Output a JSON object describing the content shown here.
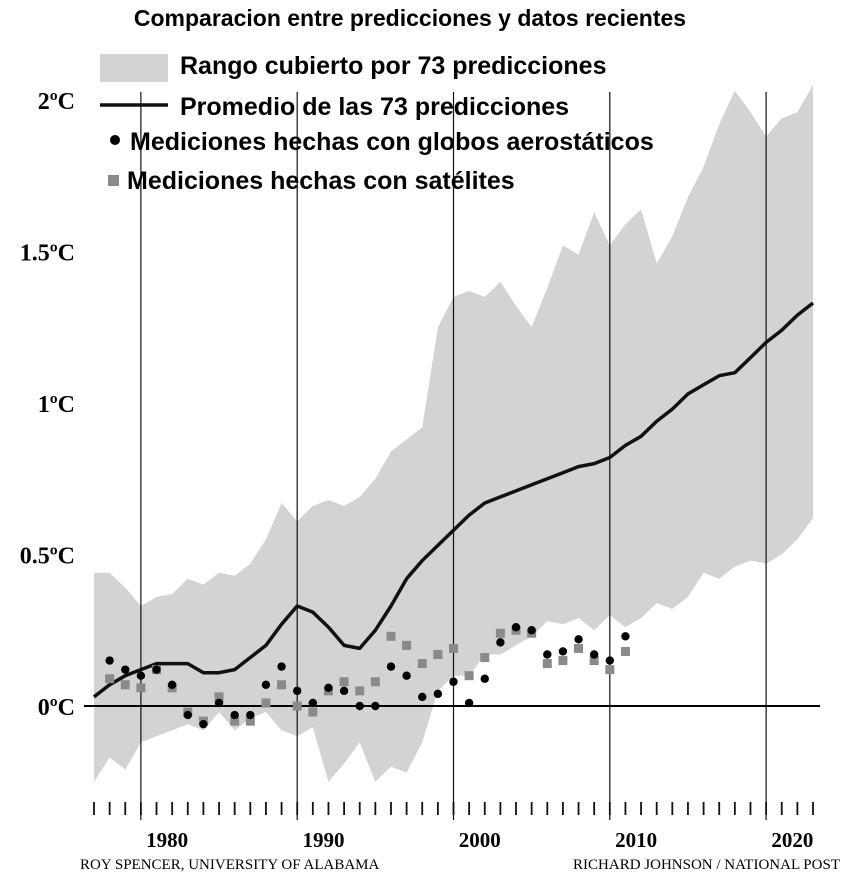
{
  "chart_data": {
    "type": "line",
    "title": "Comparacion entre predicciones y datos recientes",
    "xlabel": "",
    "ylabel": "",
    "xlim": [
      1975,
      2022
    ],
    "ylim": [
      -0.35,
      2.1
    ],
    "y_ticks": [
      0,
      0.5,
      1,
      1.5,
      2
    ],
    "y_tick_labels": [
      "0ºC",
      "0.5ºC",
      "1ºC",
      "1.5ºC",
      "2ºC"
    ],
    "x_ticks": [
      1980,
      1990,
      2000,
      2010,
      2020
    ],
    "x_tick_labels": [
      "1980",
      "1990",
      "2000",
      "2010",
      "2020"
    ],
    "vertical_lines": [
      1978,
      1988,
      1998,
      2008,
      2018
    ],
    "grid": false,
    "legend": {
      "position": "top-left",
      "entries": [
        {
          "label": "Rango cubierto por 73 predicciones",
          "marker": "band",
          "color": "#d3d3d3"
        },
        {
          "label": "Promedio de las 73 predicciones",
          "marker": "line",
          "color": "#111111"
        },
        {
          "label": "Mediciones hechas con globos aerostáticos",
          "marker": "circle",
          "color": "#000000"
        },
        {
          "label": "Mediciones hechas con satélites",
          "marker": "square",
          "color": "#8a8a8a"
        }
      ]
    },
    "range_band": {
      "name": "Rango cubierto por 73 predicciones",
      "upper": [
        [
          1975,
          0.44
        ],
        [
          1976,
          0.44
        ],
        [
          1977,
          0.39
        ],
        [
          1978,
          0.33
        ],
        [
          1979,
          0.36
        ],
        [
          1980,
          0.37
        ],
        [
          1981,
          0.42
        ],
        [
          1982,
          0.4
        ],
        [
          1983,
          0.44
        ],
        [
          1984,
          0.43
        ],
        [
          1985,
          0.47
        ],
        [
          1986,
          0.55
        ],
        [
          1987,
          0.67
        ],
        [
          1988,
          0.61
        ],
        [
          1989,
          0.66
        ],
        [
          1990,
          0.68
        ],
        [
          1991,
          0.66
        ],
        [
          1992,
          0.69
        ],
        [
          1993,
          0.75
        ],
        [
          1994,
          0.84
        ],
        [
          1995,
          0.88
        ],
        [
          1996,
          0.92
        ],
        [
          1997,
          1.25
        ],
        [
          1998,
          1.35
        ],
        [
          1999,
          1.37
        ],
        [
          2000,
          1.35
        ],
        [
          2001,
          1.4
        ],
        [
          2002,
          1.32
        ],
        [
          2003,
          1.25
        ],
        [
          2004,
          1.38
        ],
        [
          2005,
          1.52
        ],
        [
          2006,
          1.49
        ],
        [
          2007,
          1.63
        ],
        [
          2008,
          1.52
        ],
        [
          2009,
          1.59
        ],
        [
          2010,
          1.64
        ],
        [
          2011,
          1.46
        ],
        [
          2012,
          1.55
        ],
        [
          2013,
          1.68
        ],
        [
          2014,
          1.78
        ],
        [
          2015,
          1.92
        ],
        [
          2016,
          2.03
        ],
        [
          2017,
          1.96
        ],
        [
          2018,
          1.88
        ],
        [
          2019,
          1.94
        ],
        [
          2020,
          1.96
        ],
        [
          2021,
          2.05
        ]
      ],
      "lower": [
        [
          1975,
          -0.25
        ],
        [
          1976,
          -0.17
        ],
        [
          1977,
          -0.21
        ],
        [
          1978,
          -0.12
        ],
        [
          1979,
          -0.1
        ],
        [
          1980,
          -0.08
        ],
        [
          1981,
          -0.06
        ],
        [
          1982,
          -0.08
        ],
        [
          1983,
          -0.02
        ],
        [
          1984,
          -0.08
        ],
        [
          1985,
          -0.04
        ],
        [
          1986,
          -0.02
        ],
        [
          1987,
          -0.08
        ],
        [
          1988,
          -0.1
        ],
        [
          1989,
          -0.07
        ],
        [
          1990,
          -0.25
        ],
        [
          1991,
          -0.19
        ],
        [
          1992,
          -0.12
        ],
        [
          1993,
          -0.25
        ],
        [
          1994,
          -0.2
        ],
        [
          1995,
          -0.22
        ],
        [
          1996,
          -0.12
        ],
        [
          1997,
          0.05
        ],
        [
          1998,
          0.1
        ],
        [
          1999,
          0.1
        ],
        [
          2000,
          0.17
        ],
        [
          2001,
          0.17
        ],
        [
          2002,
          0.2
        ],
        [
          2003,
          0.23
        ],
        [
          2004,
          0.28
        ],
        [
          2005,
          0.27
        ],
        [
          2006,
          0.29
        ],
        [
          2007,
          0.25
        ],
        [
          2008,
          0.3
        ],
        [
          2009,
          0.26
        ],
        [
          2010,
          0.29
        ],
        [
          2011,
          0.34
        ],
        [
          2012,
          0.32
        ],
        [
          2013,
          0.36
        ],
        [
          2014,
          0.44
        ],
        [
          2015,
          0.42
        ],
        [
          2016,
          0.46
        ],
        [
          2017,
          0.48
        ],
        [
          2018,
          0.47
        ],
        [
          2019,
          0.5
        ],
        [
          2020,
          0.55
        ],
        [
          2021,
          0.62
        ]
      ]
    },
    "series": [
      {
        "name": "Promedio de las 73 predicciones",
        "type": "line",
        "color": "#111111",
        "points": [
          [
            1975,
            0.03
          ],
          [
            1976,
            0.07
          ],
          [
            1977,
            0.1
          ],
          [
            1978,
            0.12
          ],
          [
            1979,
            0.14
          ],
          [
            1980,
            0.14
          ],
          [
            1981,
            0.14
          ],
          [
            1982,
            0.11
          ],
          [
            1983,
            0.11
          ],
          [
            1984,
            0.12
          ],
          [
            1985,
            0.16
          ],
          [
            1986,
            0.2
          ],
          [
            1987,
            0.27
          ],
          [
            1988,
            0.33
          ],
          [
            1989,
            0.31
          ],
          [
            1990,
            0.26
          ],
          [
            1991,
            0.2
          ],
          [
            1992,
            0.19
          ],
          [
            1993,
            0.25
          ],
          [
            1994,
            0.33
          ],
          [
            1995,
            0.42
          ],
          [
            1996,
            0.48
          ],
          [
            1997,
            0.53
          ],
          [
            1998,
            0.58
          ],
          [
            1999,
            0.63
          ],
          [
            2000,
            0.67
          ],
          [
            2001,
            0.69
          ],
          [
            2002,
            0.71
          ],
          [
            2003,
            0.73
          ],
          [
            2004,
            0.75
          ],
          [
            2005,
            0.77
          ],
          [
            2006,
            0.79
          ],
          [
            2007,
            0.8
          ],
          [
            2008,
            0.82
          ],
          [
            2009,
            0.86
          ],
          [
            2010,
            0.89
          ],
          [
            2011,
            0.94
          ],
          [
            2012,
            0.98
          ],
          [
            2013,
            1.03
          ],
          [
            2014,
            1.06
          ],
          [
            2015,
            1.09
          ],
          [
            2016,
            1.1
          ],
          [
            2017,
            1.15
          ],
          [
            2018,
            1.2
          ],
          [
            2019,
            1.24
          ],
          [
            2020,
            1.29
          ],
          [
            2021,
            1.33
          ]
        ]
      },
      {
        "name": "Mediciones hechas con globos aerostáticos",
        "type": "scatter",
        "marker": "circle",
        "color": "#000000",
        "points": [
          [
            1976,
            0.15
          ],
          [
            1977,
            0.12
          ],
          [
            1978,
            0.1
          ],
          [
            1979,
            0.12
          ],
          [
            1980,
            0.07
          ],
          [
            1981,
            -0.03
          ],
          [
            1982,
            -0.06
          ],
          [
            1983,
            0.01
          ],
          [
            1984,
            -0.03
          ],
          [
            1985,
            -0.03
          ],
          [
            1986,
            0.07
          ],
          [
            1987,
            0.13
          ],
          [
            1988,
            0.05
          ],
          [
            1989,
            0.01
          ],
          [
            1990,
            0.06
          ],
          [
            1991,
            0.05
          ],
          [
            1992,
            0.0
          ],
          [
            1993,
            0.0
          ],
          [
            1994,
            0.13
          ],
          [
            1995,
            0.1
          ],
          [
            1996,
            0.03
          ],
          [
            1997,
            0.04
          ],
          [
            1998,
            0.08
          ],
          [
            1999,
            0.01
          ],
          [
            2000,
            0.09
          ],
          [
            2001,
            0.21
          ],
          [
            2002,
            0.26
          ],
          [
            2003,
            0.25
          ],
          [
            2004,
            0.17
          ],
          [
            2005,
            0.18
          ],
          [
            2006,
            0.22
          ],
          [
            2007,
            0.17
          ],
          [
            2008,
            0.15
          ],
          [
            2009,
            0.23
          ]
        ]
      },
      {
        "name": "Mediciones hechas con satélites",
        "type": "scatter",
        "marker": "square",
        "color": "#8a8a8a",
        "points": [
          [
            1976,
            0.09
          ],
          [
            1977,
            0.07
          ],
          [
            1978,
            0.06
          ],
          [
            1979,
            0.12
          ],
          [
            1980,
            0.06
          ],
          [
            1981,
            -0.02
          ],
          [
            1982,
            -0.05
          ],
          [
            1983,
            0.03
          ],
          [
            1984,
            -0.05
          ],
          [
            1985,
            -0.05
          ],
          [
            1986,
            0.01
          ],
          [
            1987,
            0.07
          ],
          [
            1988,
            0.0
          ],
          [
            1989,
            -0.02
          ],
          [
            1990,
            0.05
          ],
          [
            1991,
            0.08
          ],
          [
            1992,
            0.05
          ],
          [
            1993,
            0.08
          ],
          [
            1994,
            0.23
          ],
          [
            1995,
            0.2
          ],
          [
            1996,
            0.14
          ],
          [
            1997,
            0.17
          ],
          [
            1998,
            0.19
          ],
          [
            1999,
            0.1
          ],
          [
            2000,
            0.16
          ],
          [
            2001,
            0.24
          ],
          [
            2002,
            0.25
          ],
          [
            2003,
            0.24
          ],
          [
            2004,
            0.14
          ],
          [
            2005,
            0.15
          ],
          [
            2006,
            0.19
          ],
          [
            2007,
            0.15
          ],
          [
            2008,
            0.12
          ],
          [
            2009,
            0.18
          ]
        ]
      }
    ],
    "credits": [
      "ROY SPENCER, UNIVERSITY OF ALABAMA",
      "RICHARD JOHNSON / NATIONAL POST"
    ]
  }
}
